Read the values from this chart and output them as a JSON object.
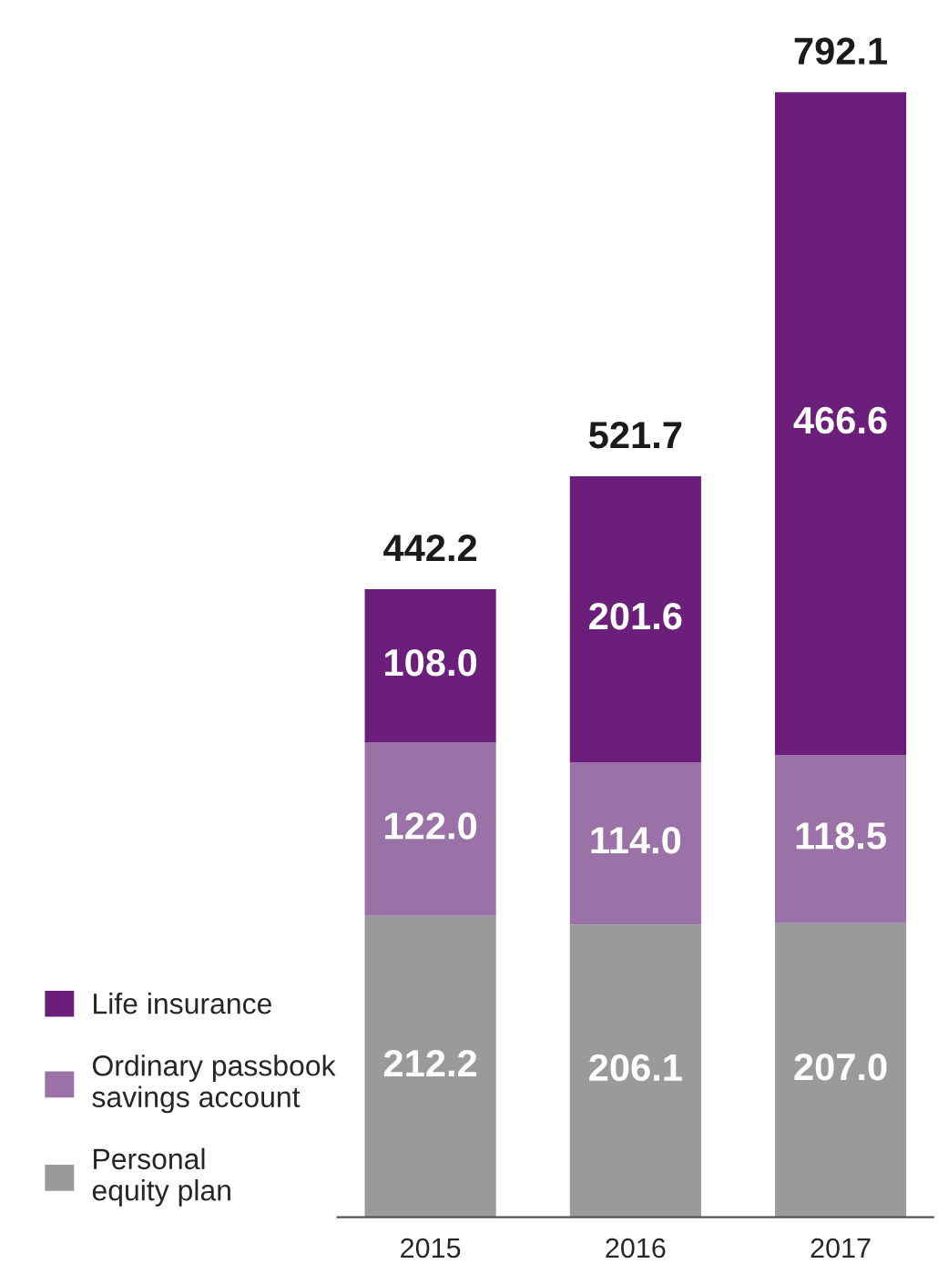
{
  "chart_data": {
    "type": "bar",
    "stacked": true,
    "categories": [
      "2015",
      "2016",
      "2017"
    ],
    "series": [
      {
        "name": "Personal\nequity plan",
        "color": "#9a9a9d",
        "values": [
          212.2,
          206.1,
          207.0
        ],
        "value_labels": [
          "212.2",
          "206.1",
          "207.0"
        ]
      },
      {
        "name": "Ordinary passbook\nsavings account",
        "color": "#9b72a8",
        "values": [
          122.0,
          114.0,
          118.5
        ],
        "value_labels": [
          "122.0",
          "114.0",
          "118.5"
        ]
      },
      {
        "name": "Life insurance",
        "color": "#6b1f7b",
        "values": [
          108.0,
          201.6,
          466.6
        ],
        "value_labels": [
          "108.0",
          "201.6",
          "466.6"
        ]
      }
    ],
    "totals": [
      "442.2",
      "521.7",
      "792.1"
    ],
    "legend": "left",
    "tick_labels": "x",
    "grid": false
  }
}
